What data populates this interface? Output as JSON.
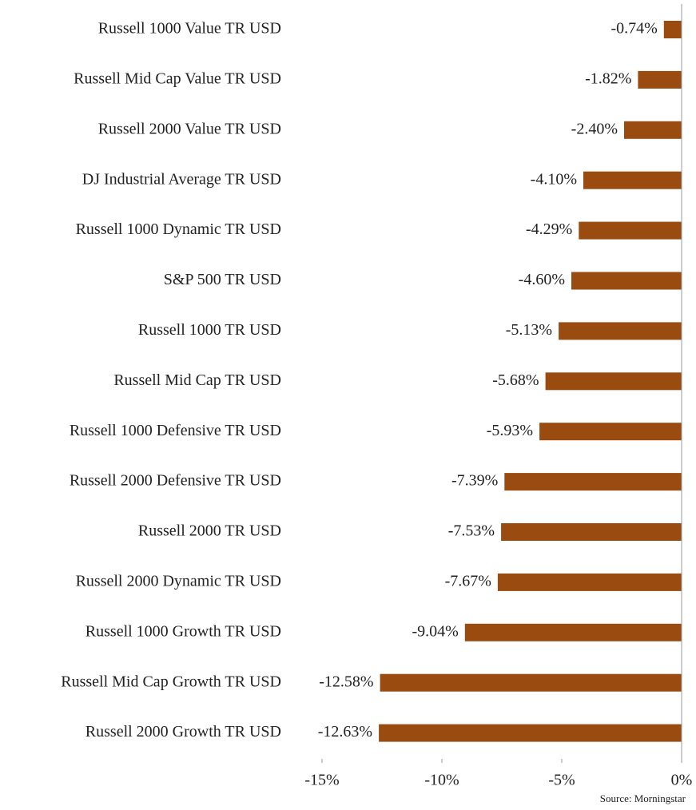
{
  "chart_data": {
    "type": "bar",
    "orientation": "horizontal",
    "categories": [
      "Russell 1000 Value TR USD",
      "Russell Mid Cap Value TR USD",
      "Russell 2000 Value TR USD",
      "DJ Industrial Average TR USD",
      "Russell 1000 Dynamic TR USD",
      "S&P 500 TR USD",
      "Russell 1000 TR USD",
      "Russell Mid Cap TR USD",
      "Russell 1000 Defensive TR USD",
      "Russell 2000 Defensive TR USD",
      "Russell 2000 TR USD",
      "Russell 2000 Dynamic TR USD",
      "Russell 1000 Growth TR USD",
      "Russell Mid Cap Growth TR USD",
      "Russell 2000 Growth TR USD"
    ],
    "values": [
      -0.74,
      -1.82,
      -2.4,
      -4.1,
      -4.29,
      -4.6,
      -5.13,
      -5.68,
      -5.93,
      -7.39,
      -7.53,
      -7.67,
      -9.04,
      -12.58,
      -12.63
    ],
    "value_labels": [
      "-0.74%",
      "-1.82%",
      "-2.40%",
      "-4.10%",
      "-4.29%",
      "-4.60%",
      "-5.13%",
      "-5.68%",
      "-5.93%",
      "-7.39%",
      "-7.53%",
      "-7.67%",
      "-9.04%",
      "-12.58%",
      "-12.63%"
    ],
    "color": "#9a4b10",
    "xlim": [
      -15,
      0
    ],
    "xticks": [
      {
        "value": -15,
        "label": "-15%"
      },
      {
        "value": -10,
        "label": "-10%"
      },
      {
        "value": -5,
        "label": "-5%"
      },
      {
        "value": 0,
        "label": "0%"
      }
    ],
    "annotation": "Source: Morningstar"
  }
}
